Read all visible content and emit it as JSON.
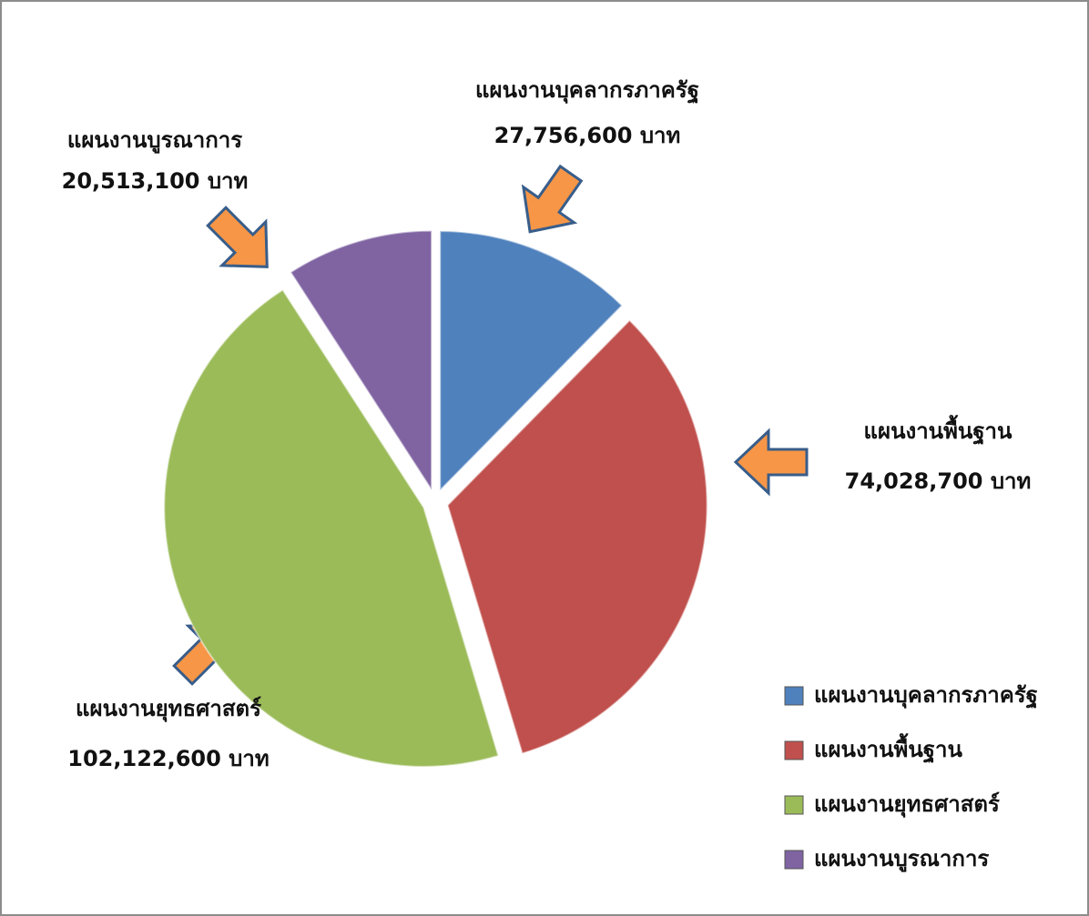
{
  "chart_data": {
    "type": "pie",
    "categories": [
      "แผนงานบุคลากรภาครัฐ",
      "แผนงานพื้นฐาน",
      "แผนงานยุทธศาสตร์",
      "แผนงานบูรณาการ"
    ],
    "values": [
      27756600,
      74028700,
      102122600,
      20513100
    ],
    "value_labels": [
      "27,756,600 บาท",
      "74,028,700 บาท",
      "102,122,600 บาท",
      "20,513,100 บาท"
    ],
    "colors": [
      "#4f81bd",
      "#c0504d",
      "#9bbb59",
      "#8064a2"
    ],
    "legend": "bottom-right"
  }
}
